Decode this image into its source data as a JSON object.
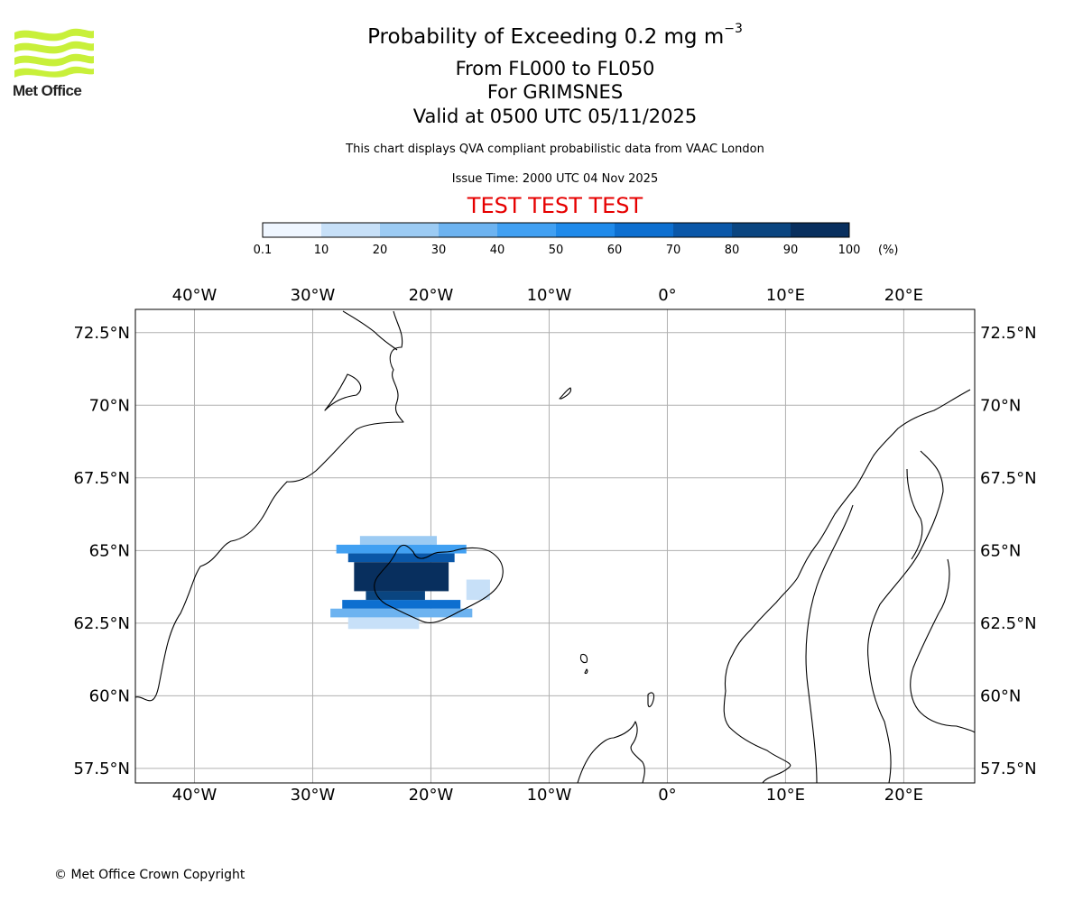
{
  "title": {
    "line1": "Probability of Exceeding 0.2 mg m",
    "line1_superscript": "−3",
    "line2": "From FL000 to FL050",
    "line3": "For GRIMSNES",
    "line4": "Valid at 0500 UTC 05/11/2025"
  },
  "subtitle": "This chart displays QVA compliant probabilistic data from VAAC London",
  "issue_time": "Issue Time: 2000 UTC 04 Nov 2025",
  "test_banner": "TEST TEST TEST",
  "logo_text": "Met Office",
  "copyright": "© Met Office Crown Copyright",
  "colorbar": {
    "ticks": [
      "0.1",
      "10",
      "20",
      "30",
      "40",
      "50",
      "60",
      "70",
      "80",
      "90",
      "100"
    ],
    "unit": "(%)",
    "colors": [
      "#eff6ff",
      "#c7e0f8",
      "#9ccbf3",
      "#6db3f0",
      "#41a0f2",
      "#1f8aea",
      "#0d6fd0",
      "#0a57a8",
      "#0a4580",
      "#082f5e"
    ]
  },
  "colors": {
    "test_banner": "#e60000",
    "logo": "#c8f03a",
    "grid": "#b0b0b0"
  },
  "chart_data": {
    "type": "heatmap",
    "projection": "PlateCarree",
    "lon_range": [
      -45,
      26
    ],
    "lat_range": [
      57,
      73.3
    ],
    "lon_gridlines": [
      -40,
      -30,
      -20,
      -10,
      0,
      10,
      20
    ],
    "lon_labels": [
      "40°W",
      "30°W",
      "20°W",
      "10°W",
      "0°",
      "10°E",
      "20°E"
    ],
    "lat_gridlines": [
      72.5,
      70,
      67.5,
      65,
      62.5,
      60,
      57.5
    ],
    "lat_labels": [
      "72.5°N",
      "70°N",
      "67.5°N",
      "65°N",
      "62.5°N",
      "60°N",
      "57.5°N"
    ],
    "variable": "Probability of exceeding 0.2 mg m-3 ash concentration (%)",
    "probability_plume": {
      "center_lon": -22.5,
      "center_lat": 64.0,
      "max_percent": 95,
      "cells": [
        {
          "lon": [
            -26.5,
            -18.5
          ],
          "lat": [
            63.6,
            64.6
          ],
          "band": 9
        },
        {
          "lon": [
            -25.5,
            -20.5
          ],
          "lat": [
            63.3,
            63.6
          ],
          "band": 8
        },
        {
          "lon": [
            -27.0,
            -18.0
          ],
          "lat": [
            64.6,
            64.9
          ],
          "band": 7
        },
        {
          "lon": [
            -27.5,
            -17.5
          ],
          "lat": [
            63.0,
            63.3
          ],
          "band": 6
        },
        {
          "lon": [
            -28.0,
            -17.0
          ],
          "lat": [
            64.9,
            65.2
          ],
          "band": 4
        },
        {
          "lon": [
            -28.5,
            -16.5
          ],
          "lat": [
            62.7,
            63.0
          ],
          "band": 3
        },
        {
          "lon": [
            -26.0,
            -19.5
          ],
          "lat": [
            65.2,
            65.5
          ],
          "band": 2
        },
        {
          "lon": [
            -27.0,
            -21.0
          ],
          "lat": [
            62.3,
            62.7
          ],
          "band": 1
        },
        {
          "lon": [
            -17.0,
            -15.0
          ],
          "lat": [
            63.3,
            64.0
          ],
          "band": 1
        }
      ]
    }
  }
}
